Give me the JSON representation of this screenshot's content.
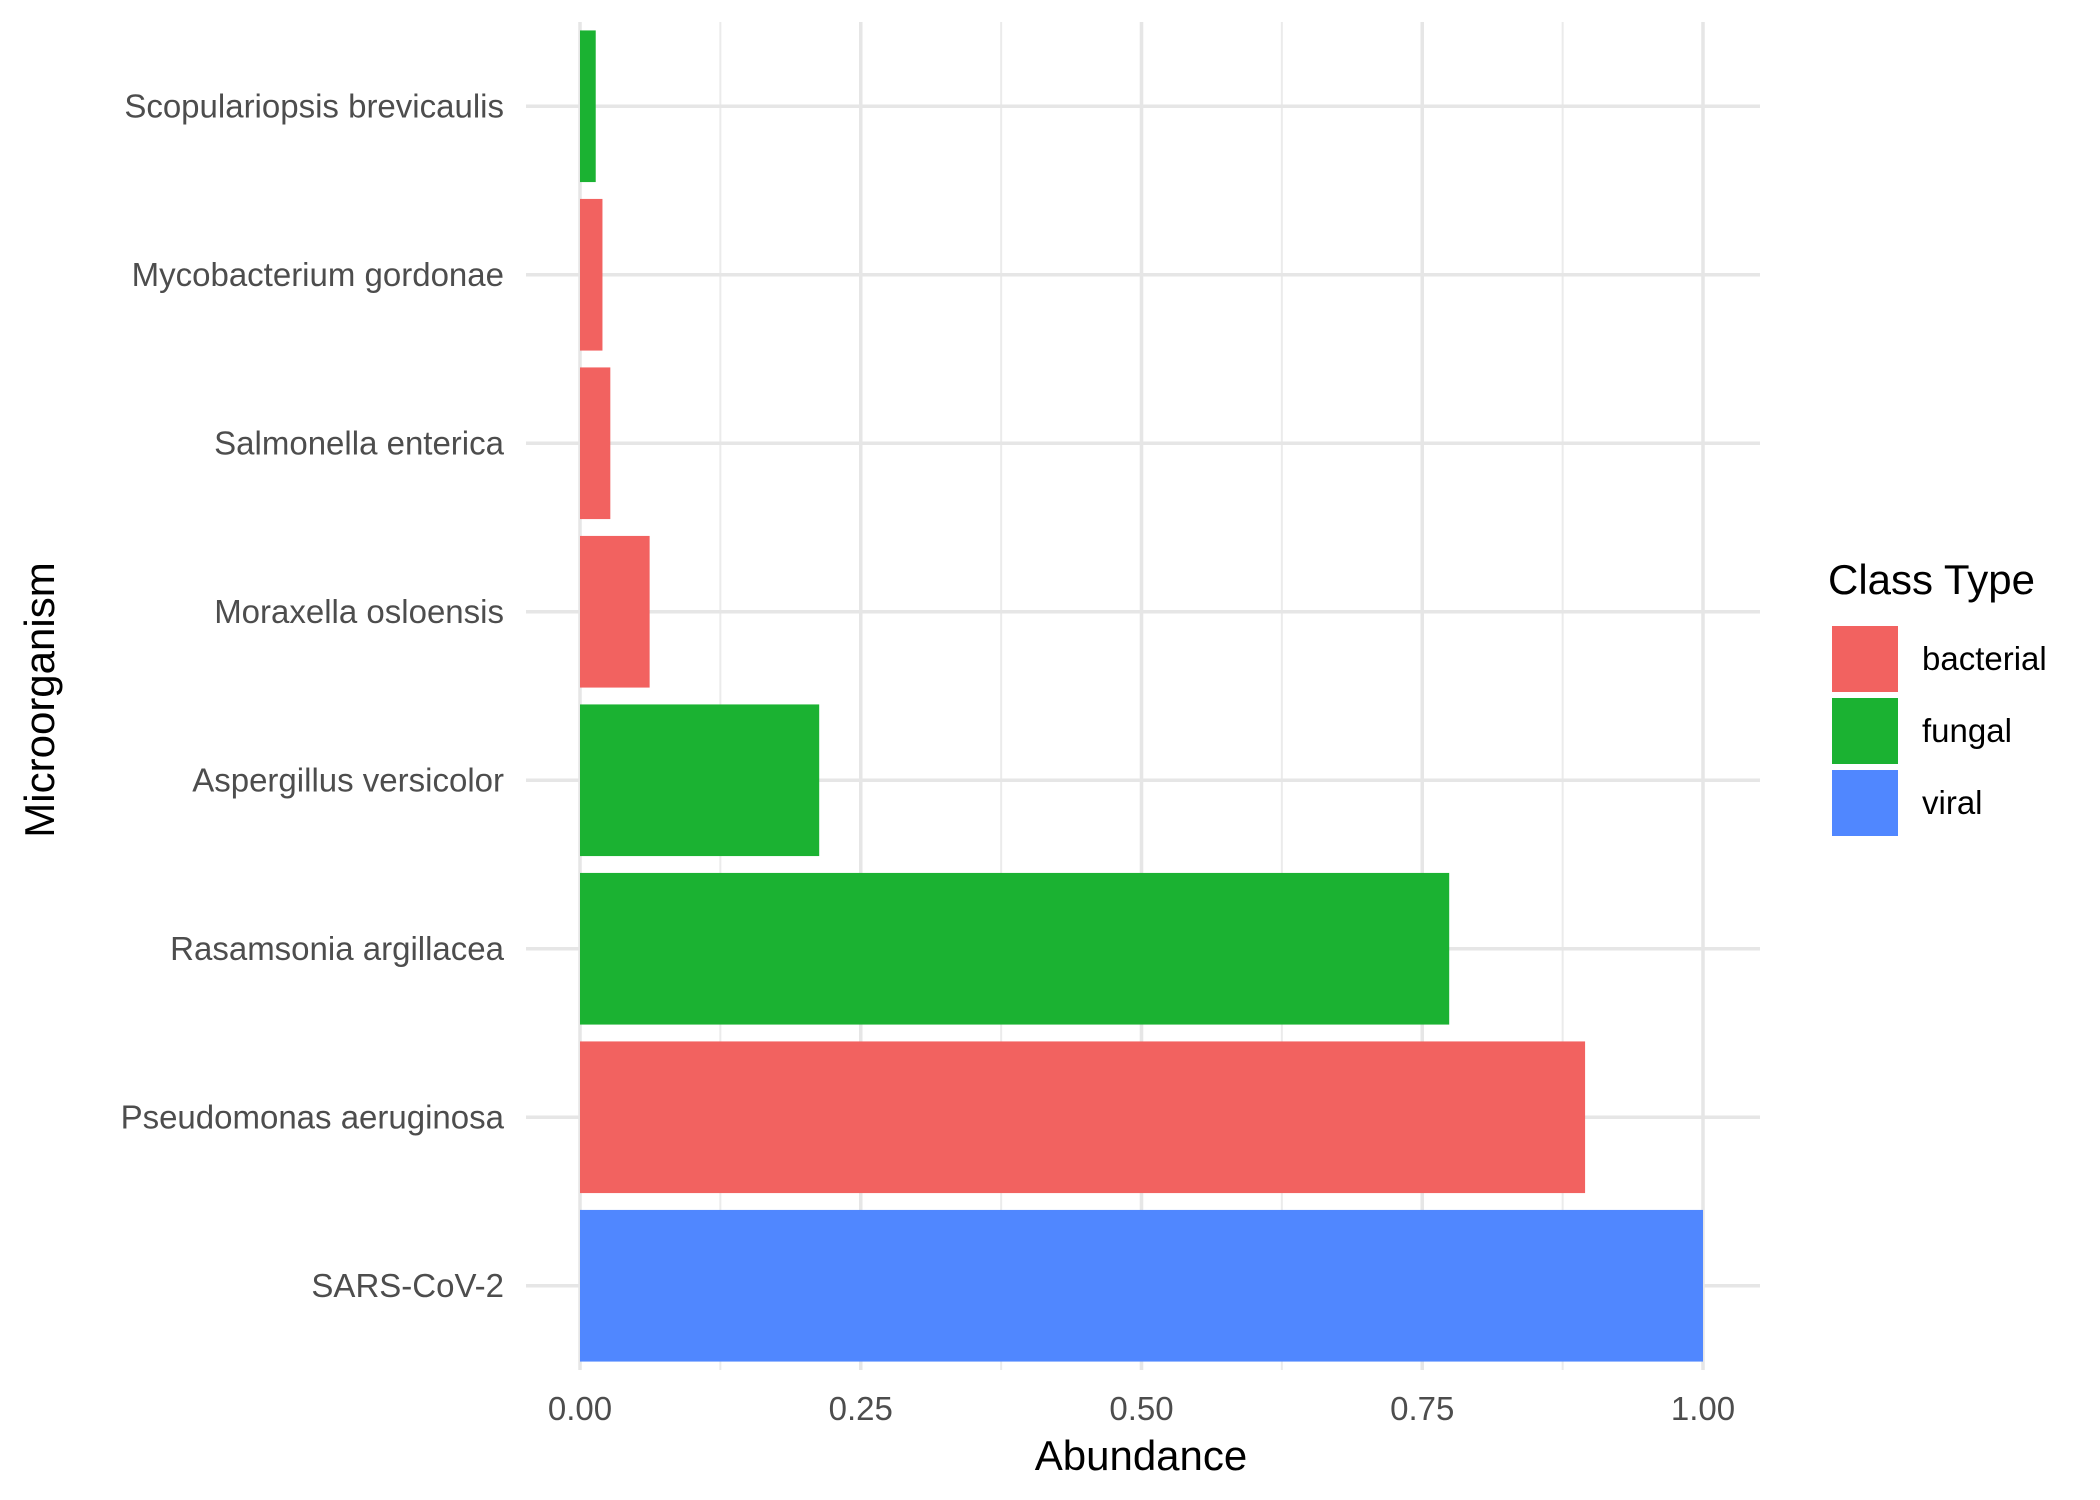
{
  "chart_data": {
    "type": "bar",
    "orientation": "horizontal",
    "xlabel": "Abundance",
    "ylabel": "Microorganism",
    "xlim": [
      0,
      1
    ],
    "x_ticks": [
      "0.00",
      "0.25",
      "0.50",
      "0.75",
      "1.00"
    ],
    "x_tick_values": [
      0,
      0.25,
      0.5,
      0.75,
      1.0
    ],
    "grid": true,
    "legend": {
      "title": "Class Type",
      "placement": "right",
      "entries": [
        {
          "label": "bacterial",
          "color": "#F26260"
        },
        {
          "label": "fungal",
          "color": "#1BB232"
        },
        {
          "label": "viral",
          "color": "#5087FF"
        }
      ]
    },
    "categories": [
      "Scopulariopsis brevicaulis",
      "Mycobacterium gordonae",
      "Salmonella enterica",
      "Moraxella osloensis",
      "Aspergillus versicolor",
      "Rasamsonia argillacea",
      "Pseudomonas aeruginosa",
      "SARS-CoV-2"
    ],
    "values": [
      0.014,
      0.02,
      0.027,
      0.062,
      0.213,
      0.774,
      0.895,
      1.0
    ],
    "class_type": [
      "fungal",
      "bacterial",
      "bacterial",
      "bacterial",
      "fungal",
      "fungal",
      "bacterial",
      "viral"
    ]
  }
}
